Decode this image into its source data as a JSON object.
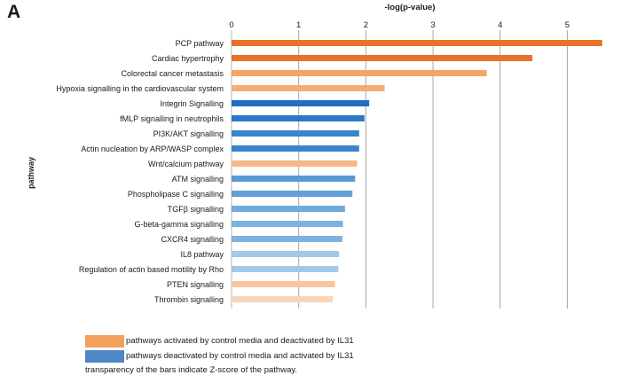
{
  "figure": {
    "panel_label": "A",
    "legend": {
      "activated_label": "pathways activated by control media and deactivated by IL31",
      "deactivated_label": "pathways deactivated by control media and activated by IL31",
      "note": "transparency of the bars indicate Z-score of the pathway.",
      "activated_color": "#f5a05a",
      "deactivated_color": "#4f86c6"
    }
  },
  "chart_data": {
    "type": "bar",
    "orientation": "horizontal",
    "xlabel": "-log(p-value)",
    "ylabel": "pathway",
    "xlim": [
      0,
      5.8
    ],
    "xticks": [
      0,
      1,
      2,
      3,
      4,
      5
    ],
    "x_axis_position": "top",
    "grid": "vertical",
    "categories": [
      "PCP pathway",
      "Cardiac hypertrophy",
      "Colorectal cancer metastasis",
      "Hypoxia signalling in the cardiovascular system",
      "Integrin Signalling",
      "fMLP signalling in neutrophils",
      "PI3K/AKT signalling",
      "Actin nucleation by ARP/WASP complex",
      "Wnt/calcium pathway",
      "ATM signalling",
      "Phospholipase C signalling",
      "TGFβ signalling",
      "G-beta-gamma signalling",
      "CXCR4 signalling",
      "IL8 pathway",
      "Regulation of actin based motility by Rho",
      "PTEN signalling",
      "Thrombin signalling"
    ],
    "values": [
      5.52,
      4.48,
      3.8,
      2.28,
      2.05,
      1.98,
      1.9,
      1.9,
      1.87,
      1.84,
      1.8,
      1.69,
      1.66,
      1.65,
      1.6,
      1.59,
      1.54,
      1.51
    ],
    "colors": [
      "#e8722a",
      "#e8722a",
      "#f4a463",
      "#f6ad74",
      "#1f6fc0",
      "#2a78c6",
      "#3a84cc",
      "#3a84cc",
      "#f8b886",
      "#5a98d3",
      "#62a0d7",
      "#72aadb",
      "#7eb2de",
      "#7eb2de",
      "#a3c8e8",
      "#a3c8e8",
      "#f9c4a0",
      "#fbd5b8"
    ]
  }
}
